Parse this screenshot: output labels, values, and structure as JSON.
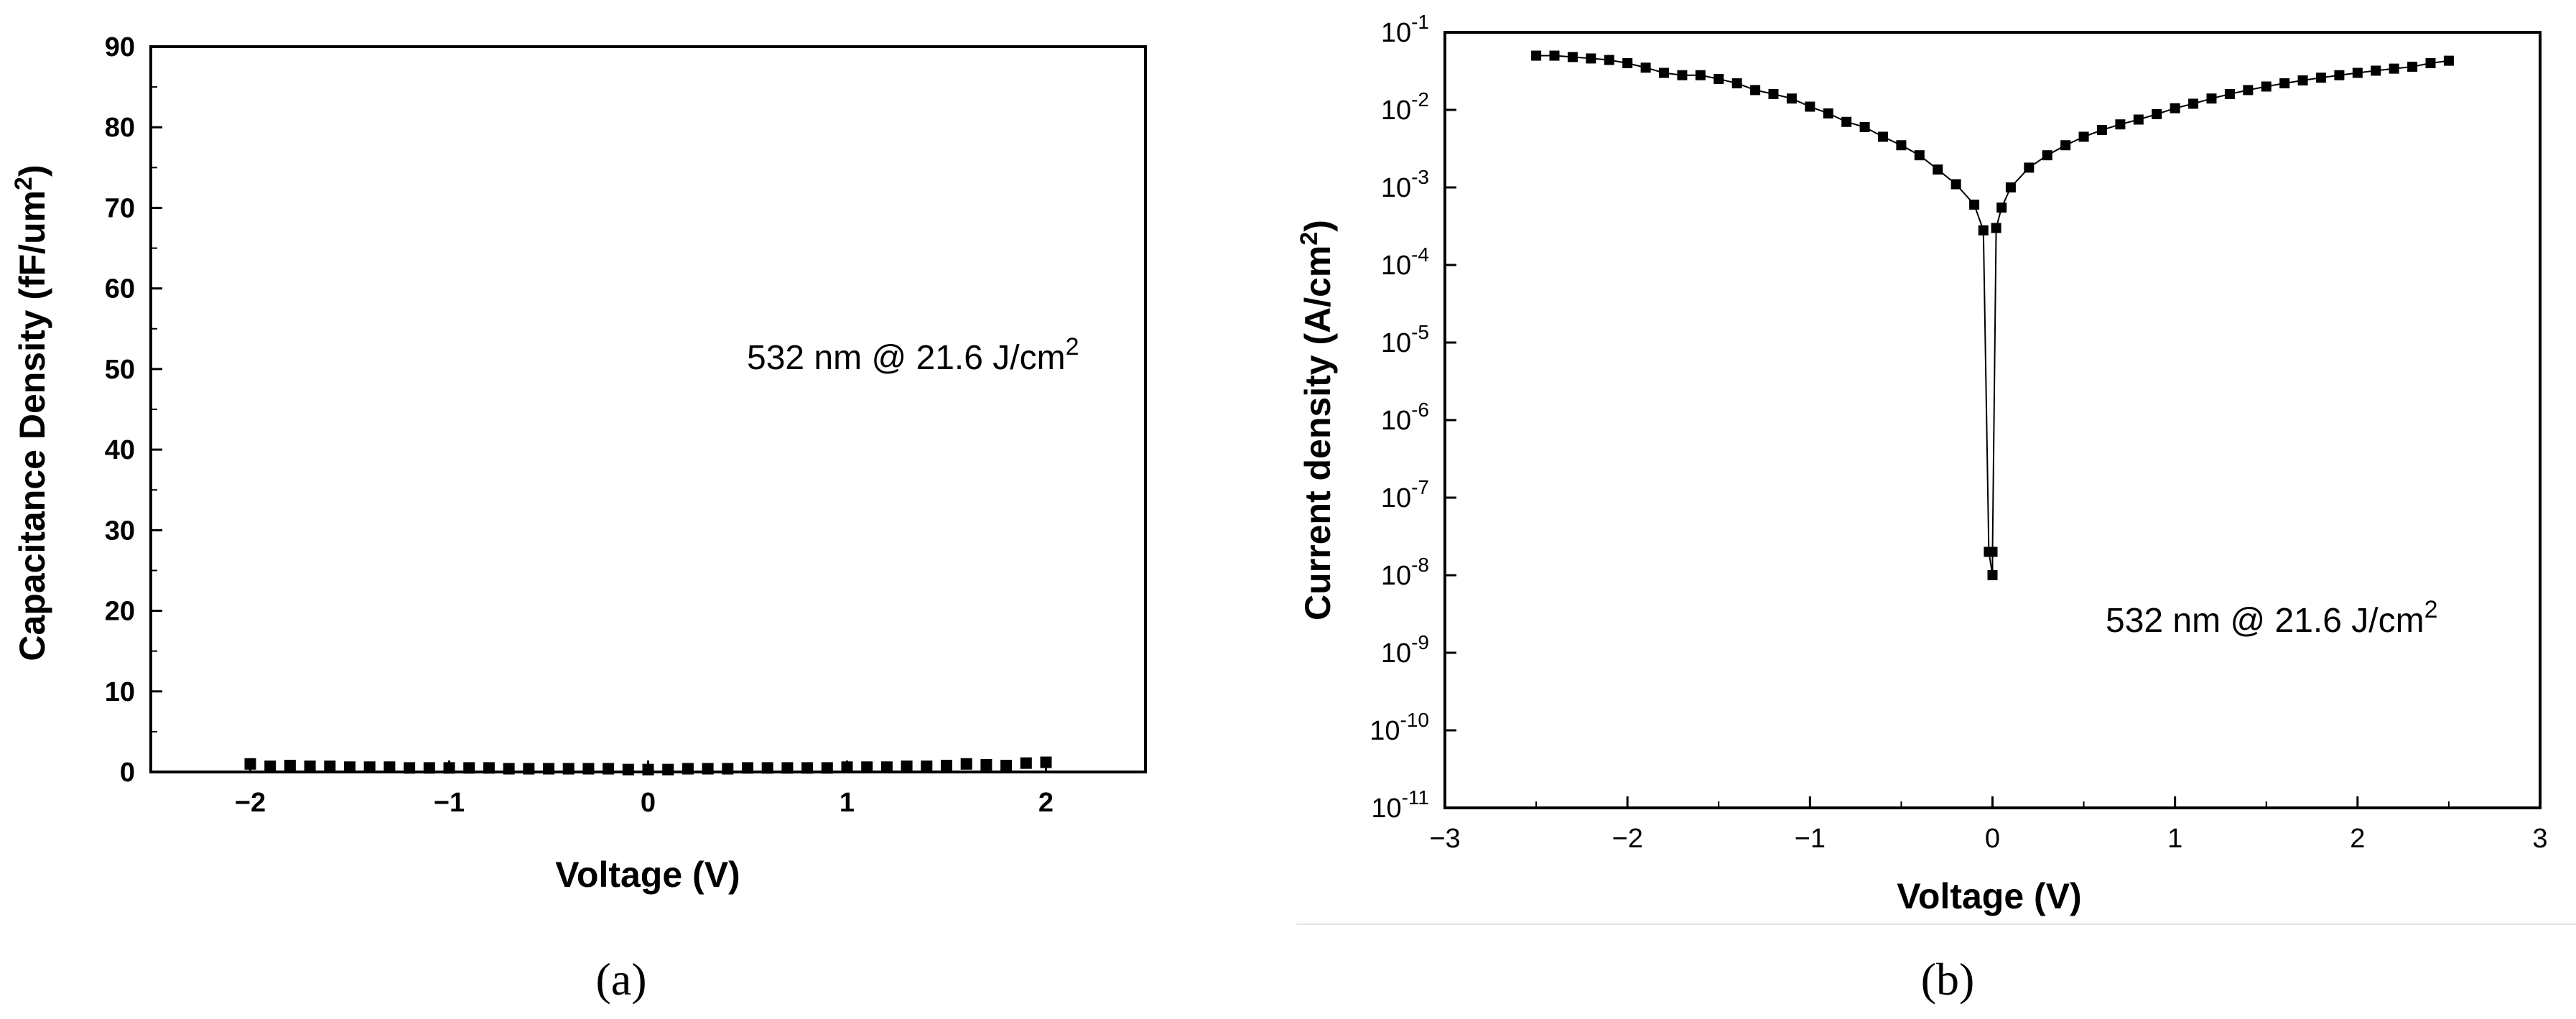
{
  "chart_data": [
    {
      "type": "scatter",
      "panel_label": "(a)",
      "xlabel": "Voltage (V)",
      "ylabel": "Capacitance Density (fF/um²)",
      "ylabel_parts": {
        "main": "Capacitance Density (fF/um",
        "sup": "2",
        "end": ")"
      },
      "xlim": [
        -2.5,
        2.5
      ],
      "ylim": [
        0,
        90
      ],
      "x_ticks": [
        -2,
        -1,
        0,
        1,
        2
      ],
      "x_tick_labels": [
        "−2",
        "−1",
        "0",
        "1",
        "2"
      ],
      "y_ticks": [
        0,
        10,
        20,
        30,
        40,
        50,
        60,
        70,
        80,
        90
      ],
      "y_tick_labels": [
        "0",
        "10",
        "20",
        "30",
        "40",
        "50",
        "60",
        "70",
        "80",
        "90"
      ],
      "grid": false,
      "annotation": "532 nm @ 21.6 J/cm²",
      "annotation_parts": {
        "main": "532 nm @ 21.6 J/cm",
        "sup": "2"
      },
      "series": [
        {
          "x": [
            -2.0,
            -1.9,
            -1.8,
            -1.7,
            -1.6,
            -1.5,
            -1.4,
            -1.3,
            -1.2,
            -1.1,
            -1.0,
            -0.9,
            -0.8,
            -0.7,
            -0.6,
            -0.5,
            -0.4,
            -0.3,
            -0.2,
            -0.1,
            0.0,
            0.1,
            0.2,
            0.3,
            0.4,
            0.5,
            0.6,
            0.7,
            0.8,
            0.9,
            1.0,
            1.1,
            1.2,
            1.3,
            1.4,
            1.5,
            1.6,
            1.7,
            1.8,
            1.9,
            2.0
          ],
          "y": [
            1.0,
            0.7,
            0.8,
            0.7,
            0.7,
            0.6,
            0.6,
            0.6,
            0.5,
            0.5,
            0.5,
            0.5,
            0.5,
            0.4,
            0.4,
            0.4,
            0.4,
            0.4,
            0.4,
            0.3,
            0.3,
            0.3,
            0.4,
            0.4,
            0.4,
            0.5,
            0.5,
            0.5,
            0.5,
            0.5,
            0.6,
            0.6,
            0.6,
            0.7,
            0.7,
            0.8,
            1.0,
            0.9,
            0.8,
            1.1,
            1.2
          ]
        }
      ]
    },
    {
      "type": "line",
      "panel_label": "(b)",
      "xlabel": "Voltage (V)",
      "ylabel": "Current density (A/cm²)",
      "ylabel_parts": {
        "main": "Current density (A/cm",
        "sup": "2",
        "end": ")"
      },
      "xlim": [
        -3,
        3
      ],
      "y_scale": "log",
      "ylim": [
        1e-11,
        0.1
      ],
      "x_ticks": [
        -3,
        -2,
        -1,
        0,
        1,
        2,
        3
      ],
      "x_tick_labels": [
        "−3",
        "−2",
        "−1",
        "0",
        "1",
        "2",
        "3"
      ],
      "y_ticks_exp": [
        -1,
        -2,
        -3,
        -4,
        -5,
        -6,
        -7,
        -8,
        -9,
        -10,
        -11
      ],
      "y_tick_base": "10",
      "y_tick_exp_labels": [
        "-1",
        "-2",
        "-3",
        "-4",
        "-5",
        "-6",
        "-7",
        "-8",
        "-9",
        "-10",
        "-11"
      ],
      "grid": false,
      "annotation": "532 nm @ 21.6 J/cm²",
      "annotation_parts": {
        "main": "532 nm @ 21.6 J/cm",
        "sup": "2"
      },
      "series": [
        {
          "x": [
            -2.5,
            -2.4,
            -2.3,
            -2.2,
            -2.1,
            -2.0,
            -1.9,
            -1.8,
            -1.7,
            -1.6,
            -1.5,
            -1.4,
            -1.3,
            -1.2,
            -1.1,
            -1.0,
            -0.9,
            -0.8,
            -0.7,
            -0.6,
            -0.5,
            -0.4,
            -0.3,
            -0.2,
            -0.1,
            -0.05,
            -0.02,
            0.0,
            0.0,
            0.02,
            0.05,
            0.1,
            0.2,
            0.3,
            0.4,
            0.5,
            0.6,
            0.7,
            0.8,
            0.9,
            1.0,
            1.1,
            1.2,
            1.3,
            1.4,
            1.5,
            1.6,
            1.7,
            1.8,
            1.9,
            2.0,
            2.1,
            2.2,
            2.3,
            2.4,
            2.5
          ],
          "y": [
            0.05,
            0.05,
            0.048,
            0.046,
            0.044,
            0.04,
            0.035,
            0.03,
            0.028,
            0.028,
            0.025,
            0.022,
            0.018,
            0.016,
            0.014,
            0.011,
            0.009,
            0.007,
            0.006,
            0.0045,
            0.0035,
            0.0026,
            0.0017,
            0.0011,
            0.0006,
            0.00028,
            2e-08,
            1e-08,
            2e-08,
            0.0003,
            0.00055,
            0.001,
            0.0018,
            0.0026,
            0.0035,
            0.0045,
            0.0055,
            0.0065,
            0.0075,
            0.0088,
            0.0105,
            0.012,
            0.014,
            0.016,
            0.018,
            0.02,
            0.022,
            0.024,
            0.026,
            0.028,
            0.03,
            0.032,
            0.034,
            0.036,
            0.04,
            0.043
          ]
        }
      ]
    }
  ]
}
